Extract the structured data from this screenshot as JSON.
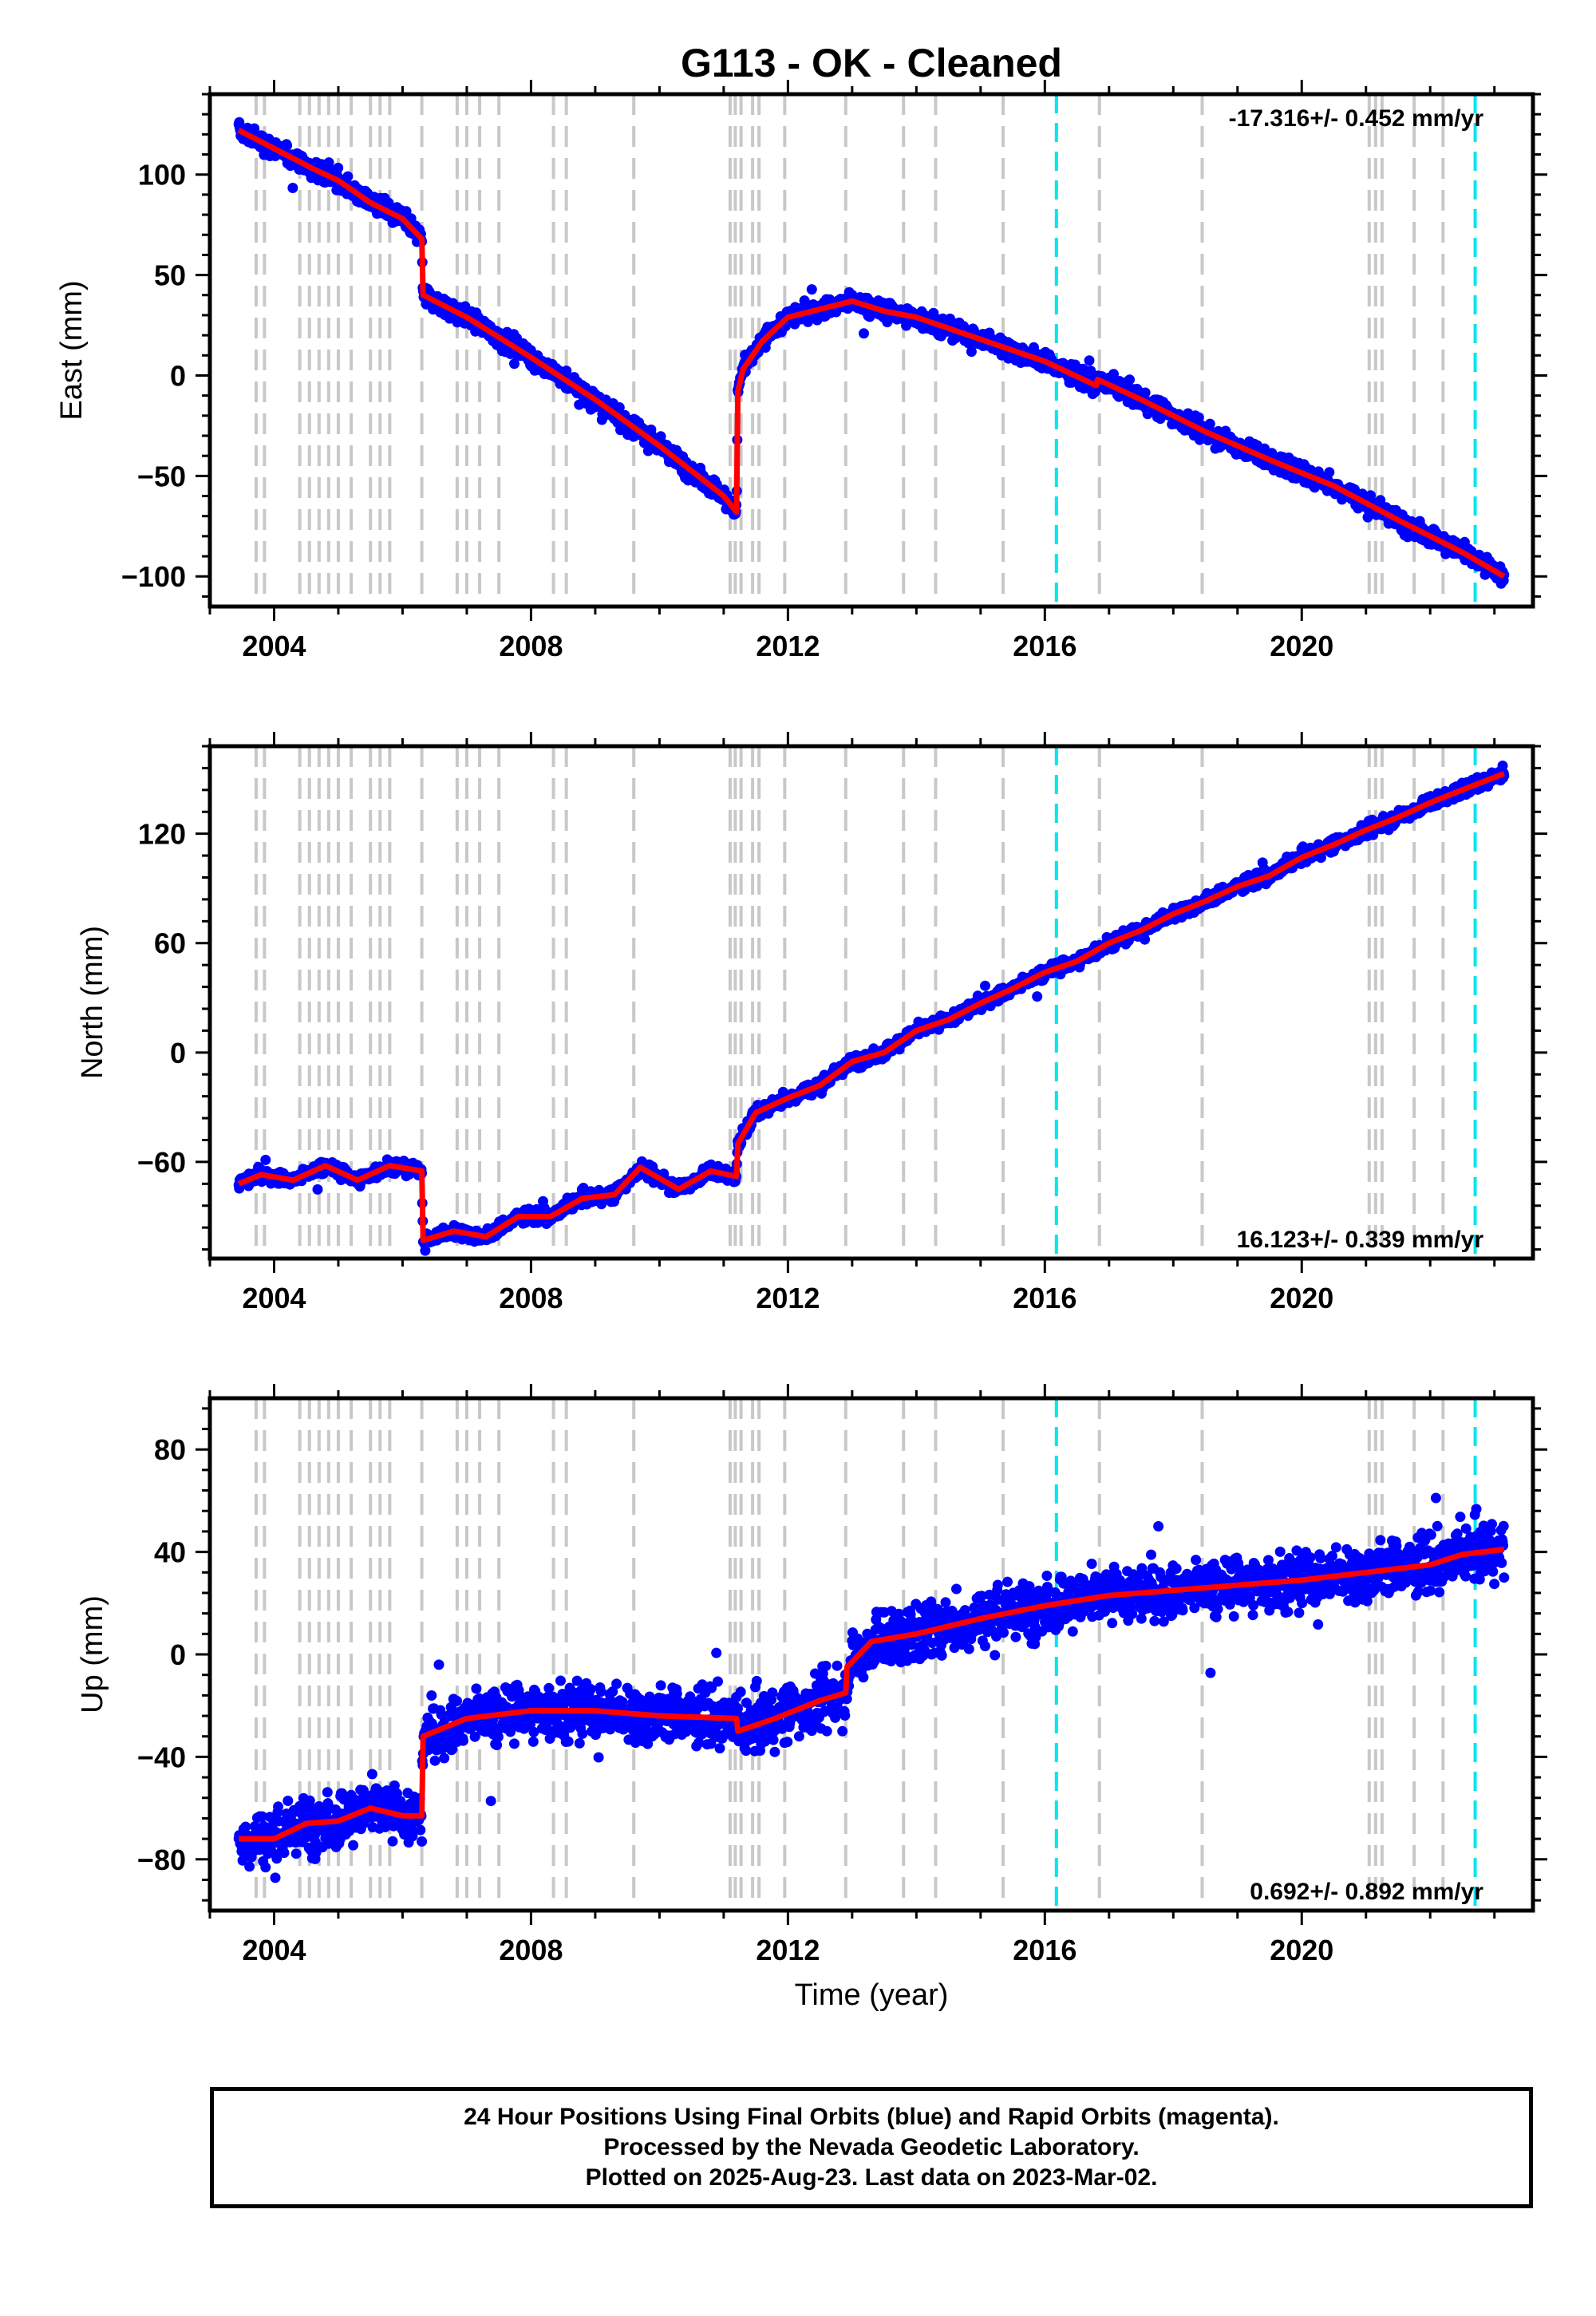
{
  "title": "G113  - OK - Cleaned",
  "xlabel": "Time (year)",
  "footer": {
    "line1": "24 Hour Positions Using Final Orbits (blue) and Rapid Orbits (magenta).",
    "line2": "Processed by the Nevada Geodetic Laboratory.",
    "line3": "Plotted on 2025-Aug-23. Last data on 2023-Mar-02."
  },
  "colors": {
    "data": "#0000ff",
    "model": "#ff0000",
    "equipment_change": "#c8c8c8",
    "earthquake": "#00e5ee",
    "axes": "#000000"
  },
  "chart_data": [
    {
      "type": "scatter",
      "name": "east",
      "ylabel": "East (mm)",
      "rate": "-17.316+/- 0.452 mm/yr",
      "rate_position": "top-right",
      "xlim": [
        2003.0,
        2023.6
      ],
      "ylim": [
        -115,
        140
      ],
      "xticks": [
        2004,
        2008,
        2012,
        2016,
        2020
      ],
      "yticks": [
        -100,
        -50,
        0,
        50,
        100
      ],
      "scatter_sd": 3.2,
      "model": [
        [
          2003.45,
          122
        ],
        [
          2004.0,
          113
        ],
        [
          2004.6,
          103
        ],
        [
          2005.0,
          97
        ],
        [
          2005.5,
          86
        ],
        [
          2006.0,
          78
        ],
        [
          2006.3,
          68
        ],
        [
          2006.32,
          40
        ],
        [
          2007.0,
          29
        ],
        [
          2008.0,
          9
        ],
        [
          2009.0,
          -12
        ],
        [
          2010.0,
          -35
        ],
        [
          2011.0,
          -60
        ],
        [
          2011.2,
          -68
        ],
        [
          2011.22,
          -8
        ],
        [
          2011.3,
          3
        ],
        [
          2011.6,
          17
        ],
        [
          2012.0,
          29
        ],
        [
          2012.5,
          33
        ],
        [
          2013.0,
          37
        ],
        [
          2013.5,
          32
        ],
        [
          2014.0,
          29
        ],
        [
          2015.0,
          18
        ],
        [
          2016.0,
          7
        ],
        [
          2016.8,
          -5
        ],
        [
          2016.82,
          -2
        ],
        [
          2017.5,
          -12
        ],
        [
          2018.5,
          -28
        ],
        [
          2019.5,
          -42
        ],
        [
          2020.5,
          -55
        ],
        [
          2021.5,
          -72
        ],
        [
          2022.5,
          -88
        ],
        [
          2023.15,
          -100
        ]
      ]
    },
    {
      "type": "scatter",
      "name": "north",
      "ylabel": "North (mm)",
      "rate": "16.123+/- 0.339 mm/yr",
      "rate_position": "bottom-right",
      "xlim": [
        2003.0,
        2023.6
      ],
      "ylim": [
        -113,
        168
      ],
      "xticks": [
        2004,
        2008,
        2012,
        2016,
        2020
      ],
      "yticks": [
        -60,
        0,
        60,
        120
      ],
      "scatter_sd": 2.5,
      "model": [
        [
          2003.45,
          -72
        ],
        [
          2003.8,
          -67
        ],
        [
          2004.3,
          -70
        ],
        [
          2004.8,
          -62
        ],
        [
          2005.3,
          -70
        ],
        [
          2005.8,
          -62
        ],
        [
          2006.3,
          -65
        ],
        [
          2006.32,
          -103
        ],
        [
          2006.8,
          -98
        ],
        [
          2007.3,
          -101
        ],
        [
          2007.8,
          -90
        ],
        [
          2008.3,
          -90
        ],
        [
          2008.8,
          -80
        ],
        [
          2009.3,
          -78
        ],
        [
          2009.7,
          -63
        ],
        [
          2010.3,
          -75
        ],
        [
          2010.8,
          -65
        ],
        [
          2011.2,
          -68
        ],
        [
          2011.22,
          -50
        ],
        [
          2011.5,
          -33
        ],
        [
          2012.0,
          -25
        ],
        [
          2012.5,
          -18
        ],
        [
          2013.0,
          -5
        ],
        [
          2013.5,
          0
        ],
        [
          2014.0,
          12
        ],
        [
          2014.5,
          18
        ],
        [
          2015.0,
          27
        ],
        [
          2015.5,
          35
        ],
        [
          2016.0,
          44
        ],
        [
          2016.5,
          50
        ],
        [
          2017.0,
          60
        ],
        [
          2017.5,
          67
        ],
        [
          2018.0,
          76
        ],
        [
          2018.5,
          83
        ],
        [
          2019.0,
          91
        ],
        [
          2019.5,
          97
        ],
        [
          2020.0,
          107
        ],
        [
          2020.5,
          114
        ],
        [
          2021.0,
          122
        ],
        [
          2021.5,
          129
        ],
        [
          2022.0,
          137
        ],
        [
          2022.5,
          144
        ],
        [
          2023.15,
          153
        ]
      ]
    },
    {
      "type": "scatter",
      "name": "up",
      "ylabel": "Up (mm)",
      "rate": "0.692+/- 0.892 mm/yr",
      "rate_position": "bottom-right",
      "xlim": [
        2003.0,
        2023.6
      ],
      "ylim": [
        -100,
        100
      ],
      "xticks": [
        2004,
        2008,
        2012,
        2016,
        2020
      ],
      "yticks": [
        -80,
        -40,
        0,
        40,
        80
      ],
      "scatter_sd": 7.5,
      "model": [
        [
          2003.45,
          -72
        ],
        [
          2004.0,
          -72
        ],
        [
          2004.5,
          -66
        ],
        [
          2005.0,
          -65
        ],
        [
          2005.5,
          -60
        ],
        [
          2006.0,
          -63
        ],
        [
          2006.3,
          -63
        ],
        [
          2006.32,
          -32
        ],
        [
          2007.0,
          -25
        ],
        [
          2008.0,
          -22
        ],
        [
          2009.0,
          -22
        ],
        [
          2010.0,
          -24
        ],
        [
          2011.2,
          -25
        ],
        [
          2011.22,
          -30
        ],
        [
          2011.8,
          -25
        ],
        [
          2012.5,
          -18
        ],
        [
          2012.9,
          -15
        ],
        [
          2012.92,
          -5
        ],
        [
          2013.3,
          5
        ],
        [
          2014.0,
          8
        ],
        [
          2015.0,
          14
        ],
        [
          2016.0,
          19
        ],
        [
          2017.0,
          23
        ],
        [
          2018.0,
          25
        ],
        [
          2019.0,
          27
        ],
        [
          2020.0,
          29
        ],
        [
          2021.0,
          32
        ],
        [
          2022.0,
          35
        ],
        [
          2022.5,
          39
        ],
        [
          2023.15,
          41
        ]
      ]
    }
  ],
  "equipment_changes": [
    2003.72,
    2003.85,
    2004.4,
    2004.55,
    2004.7,
    2004.85,
    2005.0,
    2005.2,
    2005.5,
    2005.65,
    2005.8,
    2006.3,
    2006.85,
    2007.0,
    2007.2,
    2007.5,
    2008.35,
    2008.55,
    2009.6,
    2011.1,
    2011.18,
    2011.27,
    2011.45,
    2011.55,
    2011.95,
    2012.9,
    2013.8,
    2014.3,
    2015.35,
    2016.85,
    2018.45,
    2021.05,
    2021.15,
    2021.25,
    2021.75,
    2022.2
  ],
  "earthquakes": [
    2016.18,
    2022.7
  ]
}
